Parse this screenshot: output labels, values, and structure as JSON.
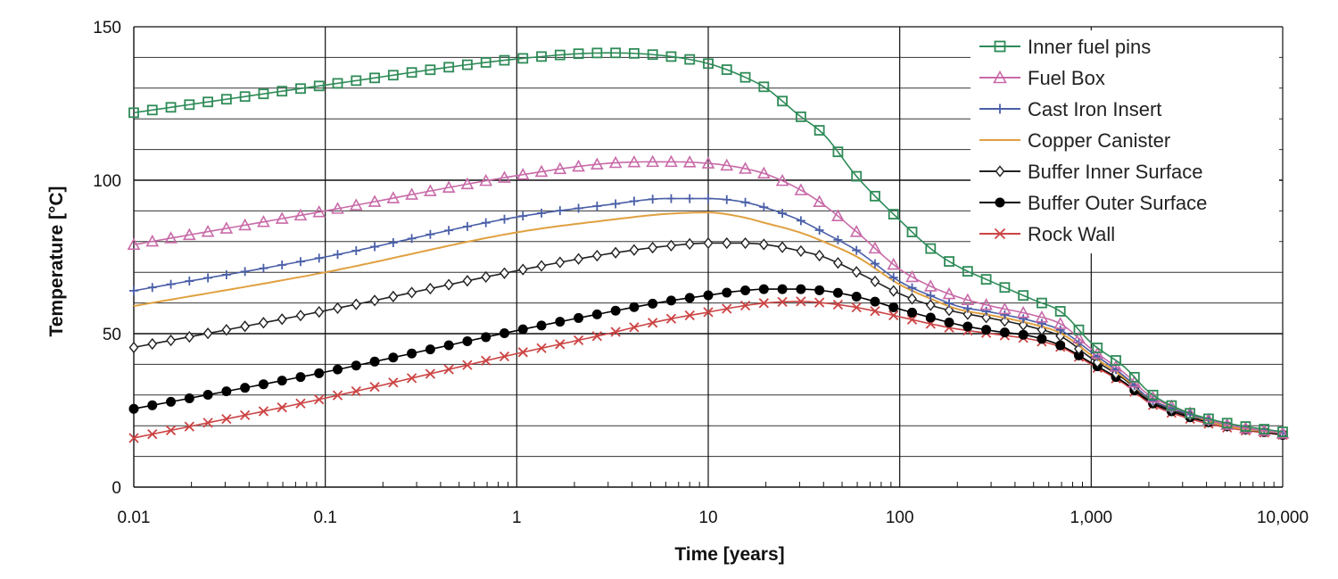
{
  "chart_data": {
    "type": "line",
    "title": "",
    "xlabel": "Time [years]",
    "ylabel": "Temperature [°C]",
    "x_scale": "log",
    "xlim": [
      0.01,
      10000
    ],
    "ylim": [
      0,
      150
    ],
    "x_ticks": [
      0.01,
      0.1,
      1,
      10,
      100,
      1000,
      10000
    ],
    "x_tick_labels": [
      "0.01",
      "0.1",
      "1",
      "10",
      "100",
      "1,000",
      "10,000"
    ],
    "y_ticks": [
      0,
      50,
      100,
      150
    ],
    "y_tick_labels": [
      "0",
      "50",
      "100",
      "150"
    ],
    "grid": true,
    "legend_position": "top-right",
    "series": [
      {
        "name": "Inner fuel pins",
        "color": "#2e8b57",
        "marker": "square-open",
        "points": [
          [
            0.01,
            122
          ],
          [
            0.1,
            131
          ],
          [
            1,
            139.5
          ],
          [
            3,
            141.5
          ],
          [
            6,
            140.5
          ],
          [
            10,
            138
          ],
          [
            15,
            134
          ],
          [
            20,
            130
          ],
          [
            30,
            121
          ],
          [
            40,
            115
          ],
          [
            60,
            101
          ],
          [
            100,
            87
          ],
          [
            150,
            77
          ],
          [
            200,
            72
          ],
          [
            300,
            67
          ],
          [
            500,
            61
          ],
          [
            700,
            57
          ],
          [
            1000,
            47
          ],
          [
            1500,
            39
          ],
          [
            2000,
            31
          ],
          [
            3000,
            25
          ],
          [
            5000,
            21
          ],
          [
            10000,
            18
          ]
        ]
      },
      {
        "name": "Fuel Box",
        "color": "#c86aa8",
        "marker": "triangle-open",
        "points": [
          [
            0.01,
            79
          ],
          [
            0.1,
            90
          ],
          [
            1,
            101.5
          ],
          [
            3,
            105.5
          ],
          [
            6,
            106
          ],
          [
            10,
            105.5
          ],
          [
            15,
            104
          ],
          [
            20,
            102
          ],
          [
            30,
            97
          ],
          [
            40,
            92
          ],
          [
            60,
            83
          ],
          [
            100,
            71
          ],
          [
            150,
            65
          ],
          [
            200,
            62
          ],
          [
            300,
            59
          ],
          [
            500,
            56
          ],
          [
            700,
            53
          ],
          [
            1000,
            45
          ],
          [
            1500,
            37
          ],
          [
            2000,
            30
          ],
          [
            3000,
            25
          ],
          [
            5000,
            20.5
          ],
          [
            10000,
            17.5
          ]
        ]
      },
      {
        "name": "Cast Iron Insert",
        "color": "#4a5fa8",
        "marker": "plus",
        "points": [
          [
            0.01,
            64
          ],
          [
            0.1,
            75
          ],
          [
            1,
            88
          ],
          [
            3,
            92
          ],
          [
            6,
            94
          ],
          [
            10,
            94
          ],
          [
            15,
            93
          ],
          [
            20,
            91
          ],
          [
            30,
            87
          ],
          [
            40,
            83
          ],
          [
            60,
            77
          ],
          [
            100,
            67
          ],
          [
            150,
            62
          ],
          [
            200,
            59
          ],
          [
            300,
            57
          ],
          [
            500,
            54
          ],
          [
            700,
            51
          ],
          [
            1000,
            44
          ],
          [
            1500,
            36
          ],
          [
            2000,
            29
          ],
          [
            3000,
            24.5
          ],
          [
            5000,
            20.5
          ],
          [
            10000,
            17.5
          ]
        ]
      },
      {
        "name": "Copper Canister",
        "color": "#e0a040",
        "marker": "none",
        "points": [
          [
            0.01,
            59
          ],
          [
            0.1,
            70
          ],
          [
            1,
            83
          ],
          [
            3,
            87
          ],
          [
            6,
            89
          ],
          [
            10,
            89.5
          ],
          [
            15,
            88
          ],
          [
            20,
            86
          ],
          [
            30,
            83
          ],
          [
            40,
            80
          ],
          [
            60,
            75
          ],
          [
            100,
            66
          ],
          [
            150,
            61
          ],
          [
            200,
            58
          ],
          [
            300,
            56
          ],
          [
            500,
            53
          ],
          [
            700,
            50
          ],
          [
            1000,
            43
          ],
          [
            1500,
            35.5
          ],
          [
            2000,
            29
          ],
          [
            3000,
            24.5
          ],
          [
            5000,
            20
          ],
          [
            10000,
            17.5
          ]
        ]
      },
      {
        "name": "Buffer Inner Surface",
        "color": "#222222",
        "marker": "diamond-open",
        "points": [
          [
            0.01,
            45.5
          ],
          [
            0.1,
            57.5
          ],
          [
            1,
            70.5
          ],
          [
            3,
            76
          ],
          [
            6,
            78.5
          ],
          [
            10,
            79.5
          ],
          [
            15,
            79.5
          ],
          [
            20,
            79
          ],
          [
            30,
            77
          ],
          [
            40,
            75
          ],
          [
            60,
            70
          ],
          [
            100,
            63
          ],
          [
            150,
            59
          ],
          [
            200,
            57
          ],
          [
            300,
            55
          ],
          [
            500,
            52
          ],
          [
            700,
            49
          ],
          [
            1000,
            42
          ],
          [
            1500,
            35
          ],
          [
            2000,
            28.5
          ],
          [
            3000,
            24
          ],
          [
            5000,
            20
          ],
          [
            10000,
            17.5
          ]
        ]
      },
      {
        "name": "Buffer Outer Surface",
        "color": "#000000",
        "marker": "circle-filled",
        "points": [
          [
            0.01,
            25.5
          ],
          [
            0.1,
            37.5
          ],
          [
            1,
            51
          ],
          [
            3,
            57
          ],
          [
            6,
            60.5
          ],
          [
            10,
            62.5
          ],
          [
            15,
            64
          ],
          [
            20,
            64.5
          ],
          [
            30,
            64.5
          ],
          [
            40,
            64
          ],
          [
            60,
            62
          ],
          [
            100,
            58
          ],
          [
            150,
            55
          ],
          [
            200,
            53
          ],
          [
            300,
            51
          ],
          [
            500,
            49
          ],
          [
            700,
            46
          ],
          [
            1000,
            40.5
          ],
          [
            1500,
            34
          ],
          [
            2000,
            28
          ],
          [
            3000,
            23.5
          ],
          [
            5000,
            20
          ],
          [
            10000,
            17
          ]
        ]
      },
      {
        "name": "Rock Wall",
        "color": "#cc4444",
        "marker": "x",
        "points": [
          [
            0.01,
            16
          ],
          [
            0.1,
            29
          ],
          [
            1,
            43.5
          ],
          [
            3,
            50
          ],
          [
            6,
            54.5
          ],
          [
            10,
            57
          ],
          [
            15,
            59
          ],
          [
            20,
            60
          ],
          [
            30,
            60.5
          ],
          [
            40,
            60
          ],
          [
            60,
            58.5
          ],
          [
            100,
            55.5
          ],
          [
            150,
            53
          ],
          [
            200,
            51.5
          ],
          [
            300,
            50
          ],
          [
            500,
            48
          ],
          [
            700,
            45.5
          ],
          [
            1000,
            40
          ],
          [
            1500,
            33.5
          ],
          [
            2000,
            27.5
          ],
          [
            3000,
            23
          ],
          [
            5000,
            19.5
          ],
          [
            10000,
            17
          ]
        ]
      }
    ]
  }
}
